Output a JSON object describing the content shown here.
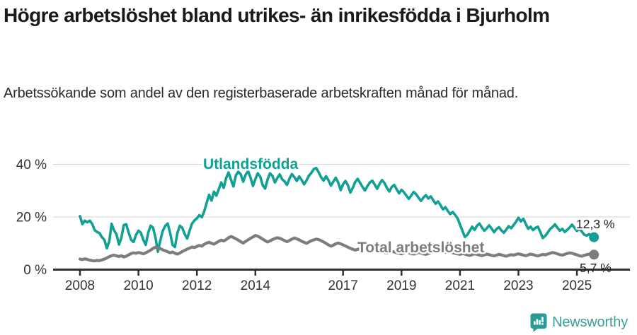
{
  "header": {
    "title": "Högre arbetslöshet bland utrikes- än inrikesfödda i Bjurholm",
    "subtitle": "Arbetssökande som andel av den registerbaserade arbetskraften månad för månad."
  },
  "colors": {
    "foreign_line": "#12a095",
    "total_line": "#7d7d7d",
    "axis": "#2e2e2e",
    "grid": "#d9d9d9",
    "tick_text": "#333333",
    "end_label_text": "#1f1f1f",
    "brand_teal": "#3aa096",
    "brand_icon": "#2d9b93"
  },
  "footer": {
    "brand_name": "Newsworthy",
    "brand_icon": "speech-bubble-bar-chart-icon"
  },
  "chart_data": {
    "type": "line",
    "title": "Högre arbetslöshet bland utrikes- än inrikesfödda i Bjurholm",
    "subtitle": "Arbetssökande som andel av den registerbaserade arbetskraften månad för månad.",
    "x_unit": "month",
    "x_start_year": 2008,
    "x_end_label_note": "monthly values Jan 2008 – Aug 2025",
    "x_tick_years": [
      2008,
      2010,
      2012,
      2014,
      2017,
      2019,
      2021,
      2023,
      2025
    ],
    "y_ticks": [
      {
        "value": 0,
        "label": "0 %"
      },
      {
        "value": 20,
        "label": "20 %"
      },
      {
        "value": 40,
        "label": "40 %"
      }
    ],
    "ylim": [
      0,
      44
    ],
    "grid": "horizontal",
    "legend_position": "inline-labels",
    "series": [
      {
        "name": "Utlandsfödda",
        "color": "#12a095",
        "end_label": "12,3 %",
        "end_value": 12.3,
        "values": [
          20.3,
          17.3,
          18.6,
          18.0,
          18.6,
          17.4,
          15.0,
          14.3,
          13.9,
          12.3,
          11.4,
          8.1,
          10.6,
          17.4,
          14.9,
          13.4,
          9.5,
          12.1,
          16.9,
          17.2,
          14.0,
          11.3,
          10.5,
          13.2,
          14.8,
          14.0,
          11.3,
          9.4,
          14.0,
          16.7,
          15.9,
          12.1,
          6.8,
          11.2,
          14.8,
          16.6,
          17.5,
          14.0,
          9.4,
          8.6,
          14.0,
          16.7,
          15.9,
          13.5,
          11.8,
          14.8,
          17.5,
          18.7,
          19.5,
          20.7,
          19.9,
          22.1,
          25.4,
          28.4,
          26.2,
          29.6,
          28.1,
          30.6,
          33.1,
          31.1,
          34.8,
          36.9,
          34.1,
          31.6,
          35.8,
          37.2,
          36.2,
          33.4,
          36.0,
          37.5,
          35.0,
          31.8,
          34.4,
          36.6,
          35.3,
          32.1,
          30.8,
          34.2,
          36.6,
          35.6,
          33.1,
          34.8,
          36.2,
          34.3,
          33.5,
          32.2,
          34.6,
          36.3,
          35.1,
          33.7,
          35.4,
          34.1,
          32.4,
          33.9,
          35.7,
          36.8,
          38.2,
          38.6,
          36.9,
          35.1,
          33.8,
          35.5,
          34.0,
          31.9,
          33.4,
          34.9,
          33.1,
          30.2,
          32.4,
          33.7,
          32.0,
          29.3,
          31.1,
          33.3,
          34.5,
          32.9,
          31.4,
          30.1,
          31.7,
          33.1,
          33.8,
          32.3,
          30.7,
          32.6,
          34.0,
          32.9,
          31.1,
          29.7,
          31.4,
          32.2,
          30.5,
          29.0,
          30.3,
          29.4,
          28.1,
          26.9,
          28.2,
          29.5,
          28.6,
          27.3,
          26.1,
          27.4,
          28.3,
          27.0,
          27.8,
          26.4,
          25.0,
          25.9,
          24.5,
          22.9,
          23.7,
          22.3,
          21.1,
          21.9,
          20.8,
          19.5,
          17.1,
          14.8,
          12.4,
          13.2,
          14.8,
          16.3,
          15.1,
          16.7,
          17.5,
          16.0,
          14.8,
          15.7,
          16.8,
          15.6,
          14.2,
          15.4,
          16.1,
          14.9,
          14.0,
          15.2,
          16.5,
          15.7,
          16.9,
          18.2,
          19.7,
          18.3,
          19.3,
          17.4,
          15.5,
          16.3,
          15.0,
          15.9,
          16.3,
          14.2,
          12.0,
          12.8,
          14.1,
          15.4,
          16.2,
          17.2,
          15.9,
          14.8,
          15.5,
          14.3,
          15.1,
          16.0,
          17.1,
          15.9,
          14.7,
          15.5,
          14.5,
          13.3,
          12.9,
          13.5,
          12.8,
          12.3
        ]
      },
      {
        "name": "Total arbetslöshet",
        "color": "#7d7d7d",
        "end_label": "5,7 %",
        "end_value": 5.7,
        "values": [
          4.0,
          3.8,
          4.1,
          3.9,
          3.6,
          3.4,
          3.3,
          3.5,
          3.4,
          3.7,
          4.0,
          4.4,
          4.9,
          5.3,
          5.5,
          5.2,
          5.0,
          5.3,
          4.8,
          5.1,
          5.6,
          6.1,
          6.4,
          6.2,
          6.5,
          6.3,
          6.0,
          6.4,
          6.9,
          7.4,
          8.1,
          8.5,
          8.3,
          8.0,
          7.5,
          7.2,
          6.8,
          6.4,
          6.7,
          6.2,
          5.9,
          6.3,
          6.9,
          7.3,
          7.8,
          8.2,
          8.6,
          8.4,
          8.8,
          9.2,
          8.9,
          9.6,
          10.1,
          10.4,
          10.0,
          9.7,
          10.2,
          10.8,
          11.2,
          10.9,
          11.4,
          12.1,
          12.6,
          12.2,
          11.7,
          11.2,
          10.6,
          10.1,
          10.7,
          11.3,
          11.9,
          12.4,
          13.0,
          12.7,
          12.2,
          11.6,
          11.0,
          10.5,
          10.9,
          11.4,
          11.8,
          12.1,
          11.9,
          11.5,
          11.0,
          10.6,
          11.1,
          11.6,
          12.0,
          11.7,
          11.3,
          10.8,
          10.4,
          10.0,
          10.5,
          11.0,
          11.3,
          11.6,
          11.4,
          11.0,
          10.5,
          10.0,
          9.4,
          8.9,
          9.3,
          9.8,
          10.1,
          9.8,
          9.4,
          9.0,
          8.5,
          8.1,
          7.7,
          7.4,
          7.7,
          8.0,
          7.8,
          7.5,
          7.2,
          7.0,
          7.3,
          7.6,
          7.4,
          7.1,
          6.8,
          6.5,
          6.3,
          6.6,
          6.9,
          6.7,
          6.4,
          6.2,
          6.0,
          6.3,
          6.6,
          6.4,
          6.1,
          5.9,
          6.2,
          6.5,
          6.3,
          6.0,
          5.8,
          6.1,
          6.4,
          6.7,
          7.0,
          7.3,
          7.1,
          6.8,
          6.6,
          6.9,
          6.7,
          6.4,
          6.2,
          6.0,
          5.8,
          6.1,
          5.9,
          5.6,
          5.4,
          5.7,
          6.0,
          5.8,
          5.5,
          5.3,
          5.6,
          5.9,
          5.7,
          5.4,
          5.2,
          5.5,
          5.8,
          5.6,
          5.3,
          5.1,
          5.4,
          5.7,
          5.5,
          5.8,
          6.0,
          5.8,
          5.5,
          5.3,
          5.6,
          5.9,
          5.7,
          5.4,
          5.2,
          5.5,
          5.8,
          5.6,
          5.9,
          6.2,
          6.5,
          6.3,
          6.0,
          5.7,
          5.5,
          5.8,
          6.1,
          6.4,
          6.2,
          5.9,
          5.6,
          5.3,
          5.1,
          5.4,
          5.7,
          5.9,
          5.8,
          5.7
        ]
      }
    ]
  }
}
